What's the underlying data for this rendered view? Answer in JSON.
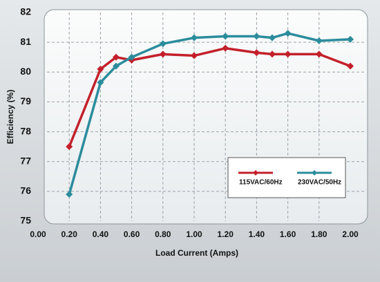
{
  "chart_data": {
    "type": "line",
    "x_label": "Load Current (Amps)",
    "y_label": "Efficiency (%)",
    "xlim": [
      0,
      2
    ],
    "ylim": [
      75,
      82
    ],
    "xticks": [
      {
        "value": 0,
        "label": "0.00"
      },
      {
        "value": 0.2,
        "label": "0.20"
      },
      {
        "value": 0.4,
        "label": "0.40"
      },
      {
        "value": 0.6,
        "label": "0.60"
      },
      {
        "value": 0.8,
        "label": "0.80"
      },
      {
        "value": 1,
        "label": "1.00"
      },
      {
        "value": 1.2,
        "label": "1.20"
      },
      {
        "value": 1.4,
        "label": "1.40"
      },
      {
        "value": 1.6,
        "label": "1.60"
      },
      {
        "value": 1.8,
        "label": "1.80"
      },
      {
        "value": 2,
        "label": "2.00"
      }
    ],
    "yticks": [
      75,
      76,
      77,
      78,
      79,
      80,
      81,
      82
    ],
    "grid": true,
    "x": [
      0.2,
      0.4,
      0.5,
      0.6,
      0.8,
      1.0,
      1.2,
      1.4,
      1.5,
      1.6,
      1.8,
      2.0
    ],
    "series": [
      {
        "name": "115VAC/60Hz",
        "color": "#c3202b",
        "values": [
          77.5,
          80.1,
          80.5,
          80.4,
          80.6,
          80.55,
          80.8,
          80.65,
          80.6,
          80.6,
          80.6,
          80.2
        ]
      },
      {
        "name": "230VAC/50Hz",
        "color": "#2b8c9c",
        "values": [
          75.9,
          79.65,
          80.2,
          80.5,
          80.95,
          81.15,
          81.2,
          81.2,
          81.15,
          81.3,
          81.05,
          81.1
        ]
      }
    ]
  }
}
